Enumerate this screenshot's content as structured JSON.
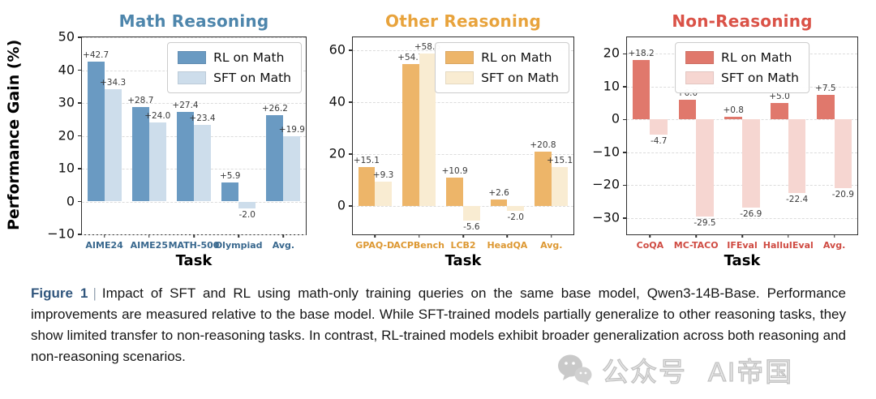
{
  "chart_data": [
    {
      "type": "bar",
      "title": "Math Reasoning",
      "xlabel": "Task",
      "ylabel": "Performance Gain (%)",
      "categories": [
        "AIME24",
        "AIME25",
        "MATH-500",
        "Olympiad",
        "Avg."
      ],
      "series": [
        {
          "name": "RL on Math",
          "values": [
            42.7,
            28.7,
            27.4,
            5.9,
            26.2
          ]
        },
        {
          "name": "SFT on Math",
          "values": [
            34.3,
            24.0,
            23.4,
            -2.0,
            19.9
          ]
        }
      ],
      "ylim": [
        -10,
        50
      ],
      "yticks": [
        50,
        40,
        30,
        20,
        10,
        0,
        -10
      ],
      "grid": true,
      "legend_position": "upper right",
      "colors": {
        "title": "#4e86ac",
        "rl": "#6a9ac2",
        "sft": "#cdddeb",
        "xticks": "#39688e"
      }
    },
    {
      "type": "bar",
      "title": "Other Reasoning",
      "xlabel": "Task",
      "ylabel": "Performance Gain (%)",
      "categories": [
        "GPAQ-D",
        "ACPBench",
        "LCB2",
        "HeadQA",
        "Avg."
      ],
      "series": [
        {
          "name": "RL on Math",
          "values": [
            15.1,
            54.7,
            10.9,
            2.6,
            20.8
          ]
        },
        {
          "name": "SFT on Math",
          "values": [
            9.3,
            58.6,
            -5.6,
            -2.0,
            15.1
          ]
        }
      ],
      "ylim": [
        -11,
        65
      ],
      "yticks": [
        60,
        40,
        20,
        0
      ],
      "grid": true,
      "legend_position": "upper right",
      "colors": {
        "title": "#e8a33c",
        "rl": "#edb569",
        "sft": "#f9ecd2",
        "xticks": "#dd9832"
      }
    },
    {
      "type": "bar",
      "title": "Non-Reasoning",
      "xlabel": "Task",
      "ylabel": "Performance Gain (%)",
      "categories": [
        "CoQA",
        "MC-TACO",
        "IFEval",
        "HalluIEval",
        "Avg."
      ],
      "series": [
        {
          "name": "RL on Math",
          "values": [
            18.2,
            6.0,
            0.8,
            5.0,
            7.5
          ]
        },
        {
          "name": "SFT on Math",
          "values": [
            -4.7,
            -29.5,
            -26.9,
            -22.4,
            -20.9
          ]
        }
      ],
      "ylim": [
        -35,
        25
      ],
      "yticks": [
        20,
        10,
        0,
        -10,
        -20,
        -30
      ],
      "grid": true,
      "legend_position": "upper center",
      "colors": {
        "title": "#da5247",
        "rl": "#e0786c",
        "sft": "#f6d6d1",
        "xticks": "#cf4b42"
      }
    }
  ],
  "caption": {
    "label": "Figure 1",
    "separator": "|",
    "text": "Impact of SFT and RL using math-only training queries on the same base model, Qwen3-14B-Base. Performance improvements are measured relative to the base model. While SFT-trained models partially generalize to other reasoning tasks, they show limited transfer to non-reasoning tasks. In contrast, RL-trained models exhibit broader generalization across both reasoning and non-reasoning scenarios."
  },
  "watermark": {
    "icon": "wechat-chat-bubbles-icon",
    "text_left": "公众号",
    "text_right": "AI帝国",
    "color": "#ababab"
  }
}
